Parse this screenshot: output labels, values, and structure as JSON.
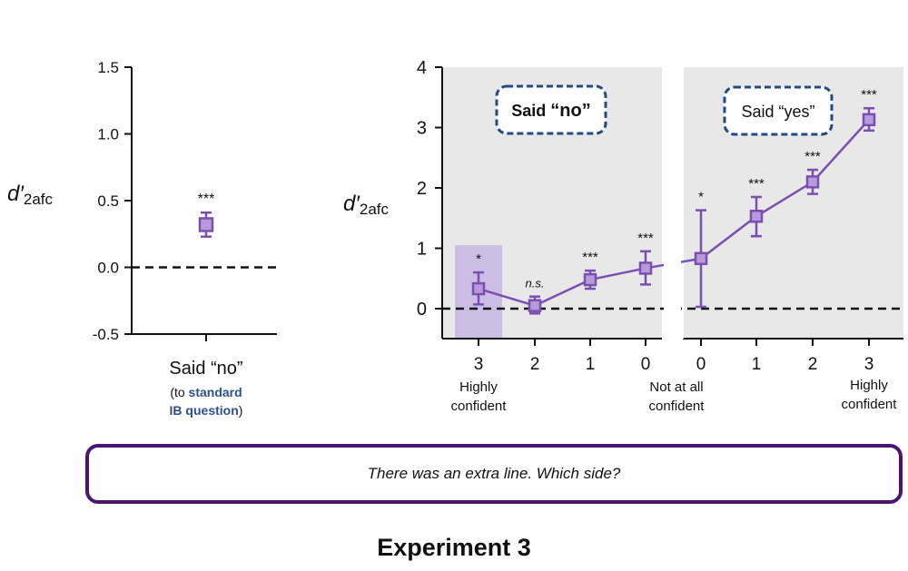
{
  "chart_data": [
    {
      "type": "scatter",
      "ylabel_main": "d′",
      "ylabel_sub": "2afc",
      "ylim": [
        -0.5,
        1.5
      ],
      "yticks": [
        "1.5",
        "1.0",
        "0.5",
        "0.0",
        "-0.5"
      ],
      "category": "Said “no”",
      "category_note": {
        "line1_prefix": "(to ",
        "line1_link": "standard",
        "line2_link": "IB question",
        "line2_suffix": ")"
      },
      "point": {
        "y": 0.32,
        "err_low": 0.23,
        "err_high": 0.41,
        "sig": "***"
      },
      "reference_line": 0.0
    },
    {
      "type": "line",
      "ylabel_main": "d′",
      "ylabel_sub": "2afc",
      "ylim": [
        -0.5,
        4.0
      ],
      "yticks": [
        "4",
        "3",
        "2",
        "1",
        "0"
      ],
      "groups": [
        {
          "label": "Said “no”",
          "label_prefix": "Said ",
          "label_quote": "“no”",
          "categories": [
            "3",
            "2",
            "1",
            "0"
          ],
          "points": [
            {
              "y": 0.33,
              "err_low": 0.07,
              "err_high": 0.6,
              "sig": "*"
            },
            {
              "y": 0.05,
              "err_low": -0.08,
              "err_high": 0.2,
              "sig": "n.s."
            },
            {
              "y": 0.48,
              "err_low": 0.33,
              "err_high": 0.63,
              "sig": "***"
            },
            {
              "y": 0.67,
              "err_low": 0.4,
              "err_high": 0.95,
              "sig": "***"
            }
          ],
          "end_labels": {
            "left": [
              "Highly",
              "confident"
            ],
            "right": [
              "Not at all",
              "confident"
            ]
          }
        },
        {
          "label": "Said “yes”",
          "categories": [
            "0",
            "1",
            "2",
            "3"
          ],
          "points": [
            {
              "y": 0.83,
              "err_low": 0.03,
              "err_high": 1.63,
              "sig": "*"
            },
            {
              "y": 1.53,
              "err_low": 1.2,
              "err_high": 1.85,
              "sig": "***"
            },
            {
              "y": 2.1,
              "err_low": 1.9,
              "err_high": 2.3,
              "sig": "***"
            },
            {
              "y": 3.13,
              "err_low": 2.95,
              "err_high": 3.32,
              "sig": "***"
            }
          ],
          "end_labels": {
            "right": [
              "Highly",
              "confident"
            ]
          }
        }
      ],
      "highlight_band": {
        "group": 0,
        "category_index": 0,
        "y_range": [
          -0.5,
          1.05
        ]
      },
      "reference_line": 0.0
    }
  ],
  "prompt_text": "There was an extra line. Which side?",
  "figure_title": "Experiment 3",
  "colors": {
    "series": "#7b4fb2",
    "marker_fill": "#b79ad9",
    "panel_bg": "#e8e8e8",
    "highlight": "#cbbde3",
    "callout_border": "#234a86",
    "link_text": "#2d4f8f",
    "prompt_border": "#4b1470",
    "axis": "#111111"
  }
}
